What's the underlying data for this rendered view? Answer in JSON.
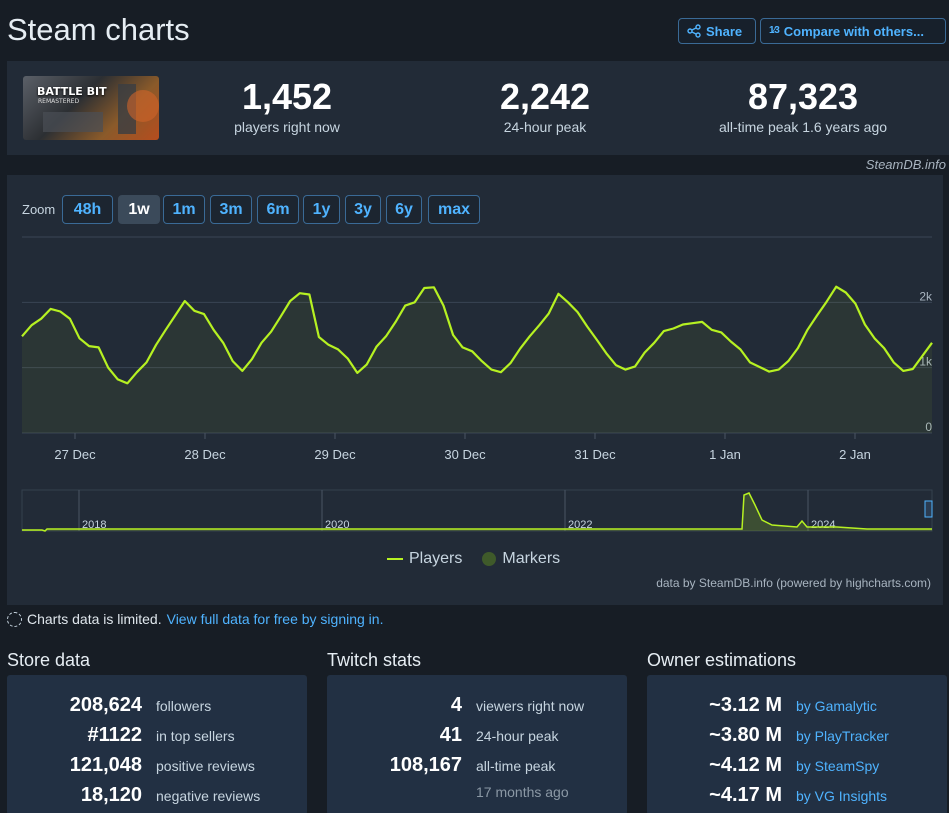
{
  "header": {
    "title": "Steam charts",
    "share_label": "Share",
    "compare_label": "Compare with others...",
    "compare_icon": "1⁄3"
  },
  "game": {
    "logo_title": "BATTLE BIT",
    "logo_subtitle": "REMASTERED"
  },
  "stats": [
    {
      "value": "1,452",
      "label": "players right now"
    },
    {
      "value": "2,242",
      "label": "24-hour peak"
    },
    {
      "value": "87,323",
      "label": "all-time peak 1.6 years ago"
    }
  ],
  "steamdb_credit": "SteamDB.info",
  "zoom": {
    "label": "Zoom",
    "options": [
      "48h",
      "1w",
      "1m",
      "3m",
      "6m",
      "1y",
      "3y",
      "6y",
      "max"
    ],
    "active": "1w"
  },
  "legend": {
    "players": "Players",
    "markers": "Markers"
  },
  "highcharts_credit": "data by SteamDB.info (powered by highcharts.com)",
  "limited_notice": {
    "text": "Charts data is limited.",
    "link": "View full data for free by signing in."
  },
  "colors": {
    "accent": "#4fb3ff",
    "series": "#b6f122",
    "panel": "#222b37",
    "background": "#171d25"
  },
  "chart_data": {
    "type": "line",
    "series": [
      {
        "name": "Players",
        "values": [
          1480,
          1650,
          1750,
          1900,
          1860,
          1750,
          1450,
          1330,
          1310,
          1000,
          820,
          760,
          930,
          1080,
          1350,
          1580,
          1800,
          2020,
          1870,
          1820,
          1580,
          1380,
          1100,
          950,
          1130,
          1380,
          1550,
          1780,
          2020,
          2140,
          2120,
          1470,
          1350,
          1280,
          1140,
          920,
          1050,
          1320,
          1480,
          1700,
          1950,
          2000,
          2220,
          2230,
          1950,
          1500,
          1310,
          1250,
          1100,
          970,
          930,
          1070,
          1290,
          1480,
          1650,
          1830,
          2130,
          2000,
          1850,
          1630,
          1430,
          1220,
          1040,
          970,
          1020,
          1230,
          1380,
          1560,
          1600,
          1660,
          1680,
          1700,
          1580,
          1540,
          1400,
          1280,
          1080,
          1010,
          940,
          970,
          1100,
          1300,
          1580,
          1800,
          2010,
          2240,
          2150,
          1980,
          1660,
          1450,
          1300,
          1080,
          950,
          980,
          1180,
          1380
        ]
      }
    ],
    "x_tick_labels": [
      "27 Dec",
      "28 Dec",
      "29 Dec",
      "30 Dec",
      "31 Dec",
      "1 Jan",
      "2 Jan"
    ],
    "y_tick_labels": [
      "0",
      "1k",
      "2k"
    ],
    "ylim": [
      0,
      3000
    ],
    "navigator": {
      "year_labels": [
        "2018",
        "2020",
        "2022",
        "2024"
      ]
    },
    "grid": true
  },
  "store_data": {
    "title": "Store data",
    "rows": [
      {
        "value": "208,624",
        "label": "followers"
      },
      {
        "value": "#1122",
        "label": "in top sellers"
      },
      {
        "value": "121,048",
        "label": "positive reviews"
      },
      {
        "value": "18,120",
        "label": "negative reviews"
      }
    ]
  },
  "twitch_stats": {
    "title": "Twitch stats",
    "rows": [
      {
        "value": "4",
        "label": "viewers right now"
      },
      {
        "value": "41",
        "label": "24-hour peak"
      },
      {
        "value": "108,167",
        "label": "all-time peak"
      }
    ],
    "peak_age": "17 months ago"
  },
  "owner_estimations": {
    "title": "Owner estimations",
    "rows": [
      {
        "value": "~3.12 M",
        "label": "by Gamalytic"
      },
      {
        "value": "~3.80 M",
        "label": "by PlayTracker"
      },
      {
        "value": "~4.12 M",
        "label": "by SteamSpy"
      },
      {
        "value": "~4.17 M",
        "label": "by VG Insights"
      }
    ]
  }
}
